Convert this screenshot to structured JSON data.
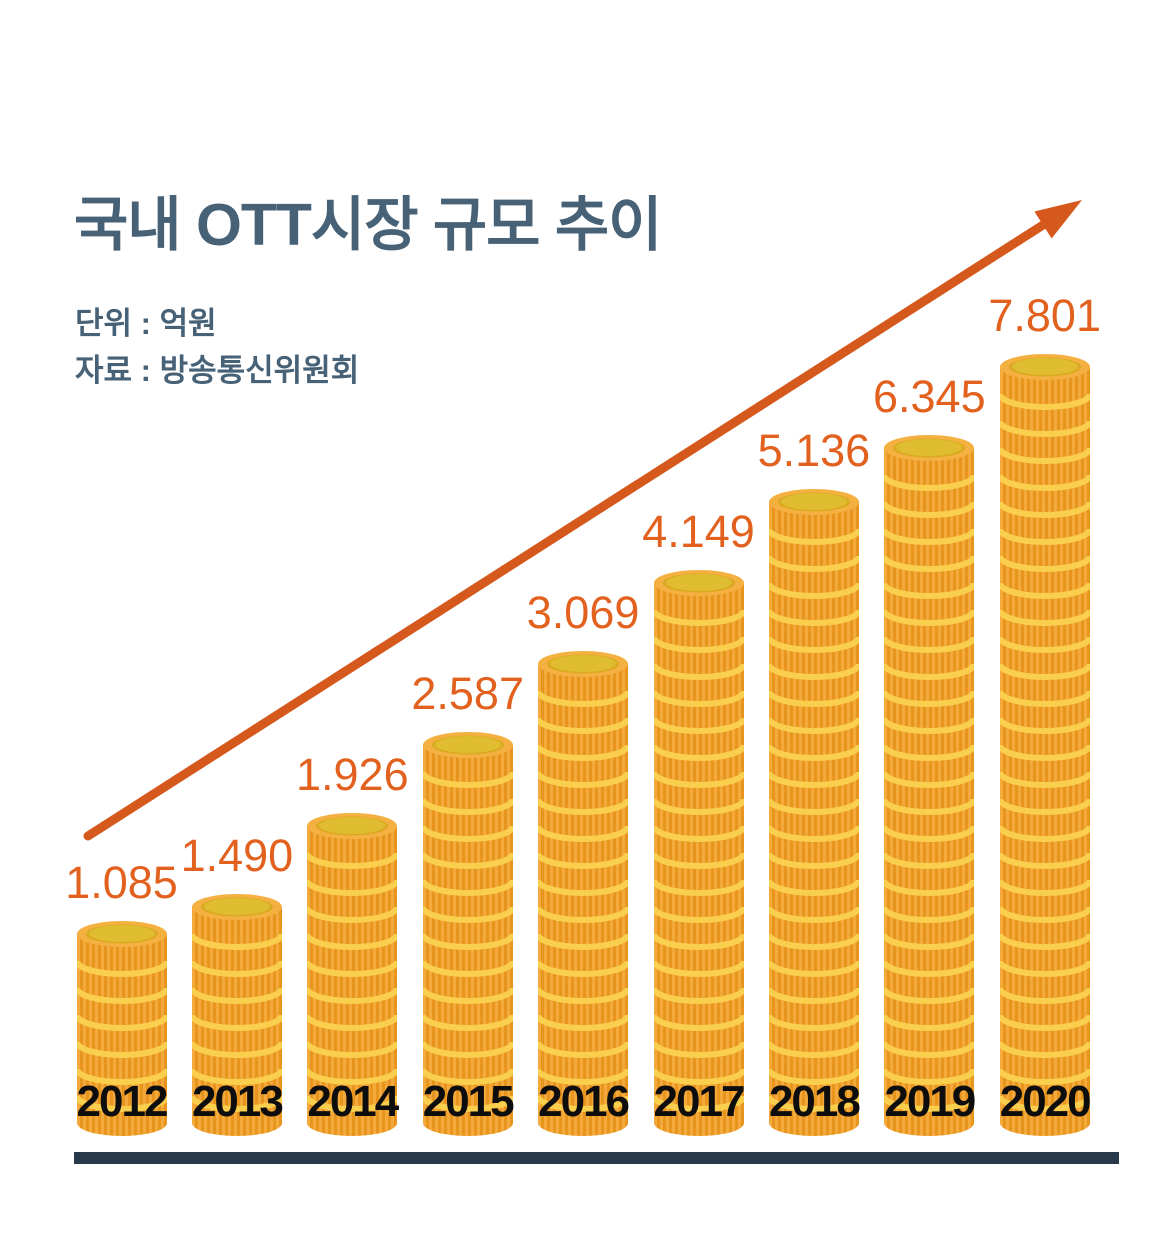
{
  "header": {
    "title": "국내 OTT시장 규모 추이",
    "unit_line": "단위 : 억원",
    "source_line": "자료 : 방송통신위원회"
  },
  "colors": {
    "title_text": "#476177",
    "value_text": "#E2611F",
    "arrow": "#D5581C",
    "baseline": "#27394A",
    "year_text": "#0d0d0d",
    "coin_stripe_light": "#F4A93C",
    "coin_stripe_dark": "#E8951E",
    "coin_band": "#F9CF4D",
    "coin_rim": "#F5B042",
    "coin_ring": "#D9A91F",
    "coin_face": "#DFBC30"
  },
  "chart_data": {
    "type": "bar",
    "title": "국내 OTT시장 규모 추이",
    "unit": "억원",
    "source": "방송통신위원회",
    "categories": [
      "2012",
      "2013",
      "2014",
      "2015",
      "2016",
      "2017",
      "2018",
      "2019",
      "2020"
    ],
    "values": [
      1085,
      1490,
      1926,
      2587,
      3069,
      4149,
      5136,
      6345,
      7801
    ],
    "value_labels": [
      "1.085",
      "1.490",
      "1.926",
      "2.587",
      "3.069",
      "4.149",
      "5.136",
      "6.345",
      "7.801"
    ],
    "ylabel": "억원",
    "ylim": [
      0,
      8000
    ],
    "grid": false,
    "legend": false,
    "bar_style": "coin-stack",
    "coin_counts": [
      7,
      8,
      11,
      14,
      17,
      20,
      23,
      25,
      28
    ],
    "trend_arrow": true
  }
}
